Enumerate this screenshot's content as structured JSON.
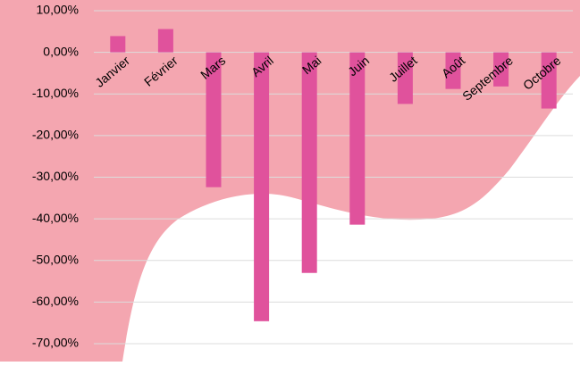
{
  "chart_data": {
    "type": "bar",
    "categories": [
      "Janvier",
      "Février",
      "Mars",
      "Avril",
      "Mai",
      "Juin",
      "Juillet",
      "Août",
      "Septembre",
      "Octobre"
    ],
    "values": [
      3.9,
      5.6,
      -32.4,
      -64.6,
      -53,
      -41.4,
      -12.4,
      -8.8,
      -8.2,
      -13.5
    ],
    "color": "#e0529c",
    "ylim": [
      -70,
      10
    ],
    "yticks": [
      {
        "value": 10,
        "label": "10,00%"
      },
      {
        "value": 0,
        "label": "0,00%"
      },
      {
        "value": -10,
        "label": "-10,00%"
      },
      {
        "value": -20,
        "label": "-20,00%"
      },
      {
        "value": -30,
        "label": "-30,00%"
      },
      {
        "value": -40,
        "label": "-40,00%"
      },
      {
        "value": -50,
        "label": "-50,00%"
      },
      {
        "value": -60,
        "label": "-60,00%"
      },
      {
        "value": -70,
        "label": "-70,00%"
      }
    ],
    "grid": true
  }
}
